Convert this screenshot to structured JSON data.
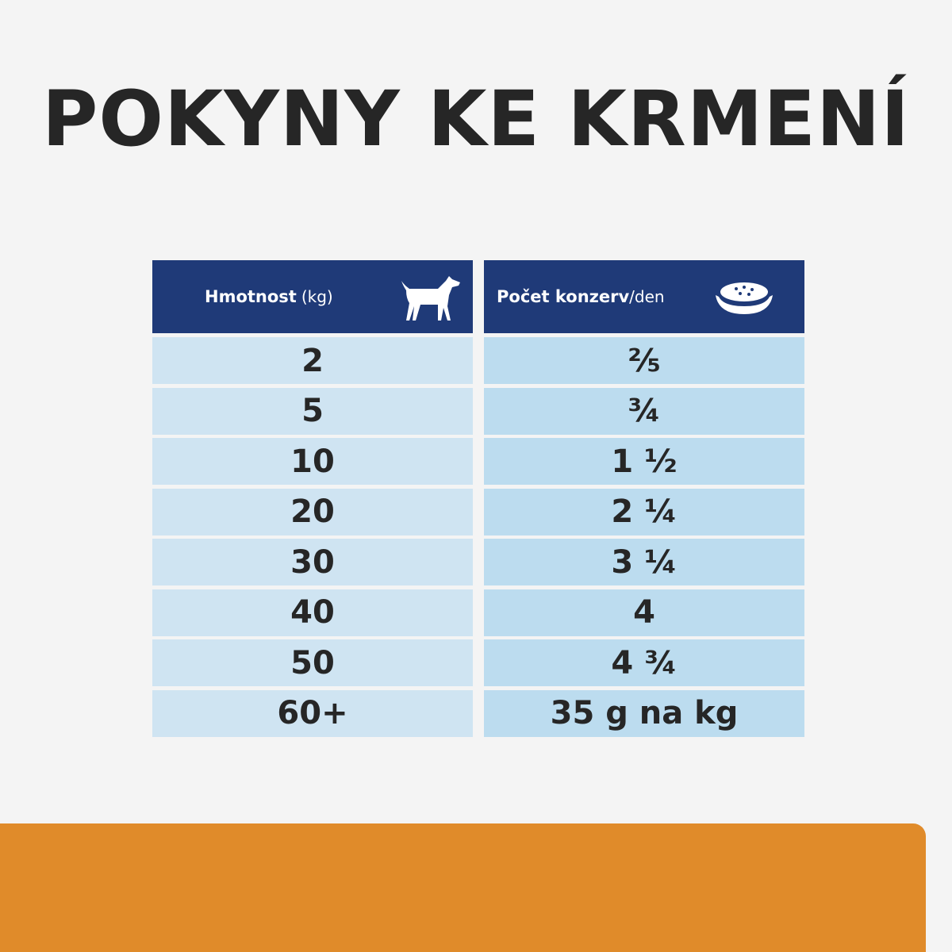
{
  "title": "POKYNY KE KRMENÍ",
  "table": {
    "header": [
      {
        "main": "Hmotnost",
        "sub": "(kg)"
      },
      {
        "main": "Počet konzerv",
        "sub": "/den"
      }
    ],
    "rows": [
      [
        "2",
        "⅖"
      ],
      [
        "5",
        "¾"
      ],
      [
        "10",
        "1 ½"
      ],
      [
        "20",
        "2 ¼"
      ],
      [
        "30",
        "3 ¼"
      ],
      [
        "40",
        "4"
      ],
      [
        "50",
        "4 ¾"
      ],
      [
        "60+",
        "35 g na kg"
      ]
    ]
  }
}
